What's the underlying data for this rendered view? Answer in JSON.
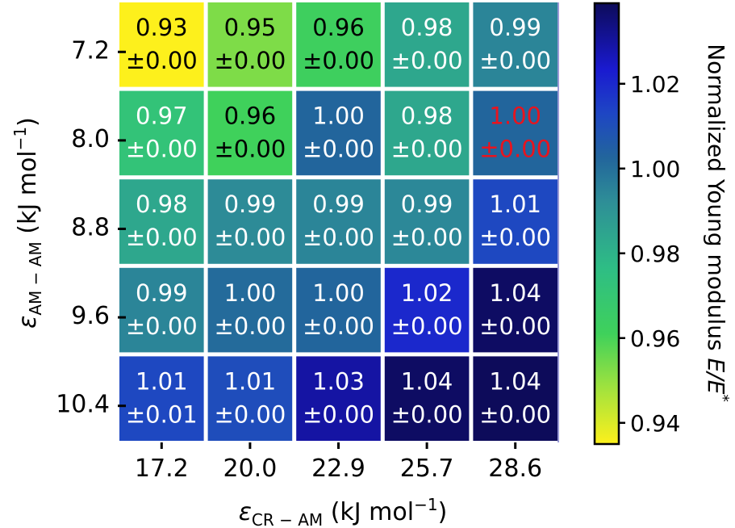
{
  "chart_data": {
    "type": "heatmap",
    "x_categories": [
      "17.2",
      "20.0",
      "22.9",
      "25.7",
      "28.6"
    ],
    "y_categories": [
      "7.2",
      "8.0",
      "8.8",
      "9.6",
      "10.4"
    ],
    "xlabel": {
      "symbol": "ε",
      "subscript": "CR − AM",
      "unit_prefix": " (kJ mol",
      "unit_exponent": "−1",
      "unit_suffix": ")"
    },
    "ylabel": {
      "symbol": "ε",
      "subscript": "AM − AM",
      "unit_prefix": " (kJ mol",
      "unit_exponent": "−1",
      "unit_suffix": ")"
    },
    "cells": [
      [
        "0.93",
        "0.95",
        "0.96",
        "0.98",
        "0.99"
      ],
      [
        "0.97",
        "0.96",
        "1.00",
        "0.98",
        "1.00"
      ],
      [
        "0.98",
        "0.99",
        "0.99",
        "0.99",
        "1.01"
      ],
      [
        "0.99",
        "1.00",
        "1.00",
        "1.02",
        "1.04"
      ],
      [
        "1.01",
        "1.01",
        "1.03",
        "1.04",
        "1.04"
      ]
    ],
    "errors": [
      [
        "±0.00",
        "±0.00",
        "±0.00",
        "±0.00",
        "±0.00"
      ],
      [
        "±0.00",
        "±0.00",
        "±0.00",
        "±0.00",
        "±0.00"
      ],
      [
        "±0.00",
        "±0.00",
        "±0.00",
        "±0.00",
        "±0.00"
      ],
      [
        "±0.00",
        "±0.00",
        "±0.00",
        "±0.00",
        "±0.00"
      ],
      [
        "±0.01",
        "±0.00",
        "±0.00",
        "±0.00",
        "±0.00"
      ]
    ],
    "values": [
      [
        0.935,
        0.953,
        0.962,
        0.98,
        0.99
      ],
      [
        0.97,
        0.961,
        1.0,
        0.98,
        1.0
      ],
      [
        0.98,
        0.988,
        0.99,
        0.989,
        1.012
      ],
      [
        0.99,
        0.998,
        1.0,
        1.022,
        1.038
      ],
      [
        1.012,
        1.01,
        1.031,
        1.038,
        1.039
      ]
    ],
    "highlight_cell": {
      "row": 1,
      "col": 4,
      "color": "#e8141e"
    },
    "colorbar": {
      "label_text": "Normalized Young modulus ",
      "label_symbol": "E/E",
      "label_superscript": "*",
      "ticks": [
        "0.94",
        "0.96",
        "0.98",
        "1.00",
        "1.02"
      ],
      "tick_values": [
        0.94,
        0.96,
        0.98,
        1.0,
        1.02
      ],
      "range": [
        0.935,
        1.039
      ]
    },
    "colormap": "viridis-like (yellow to dark navy)",
    "colors": [
      "#fdf01c",
      "#a6e33c",
      "#3fd15b",
      "#2ebd85",
      "#2e8e97",
      "#22659c",
      "#1e46c4",
      "#1a1ad0",
      "#0d0b5a"
    ]
  }
}
